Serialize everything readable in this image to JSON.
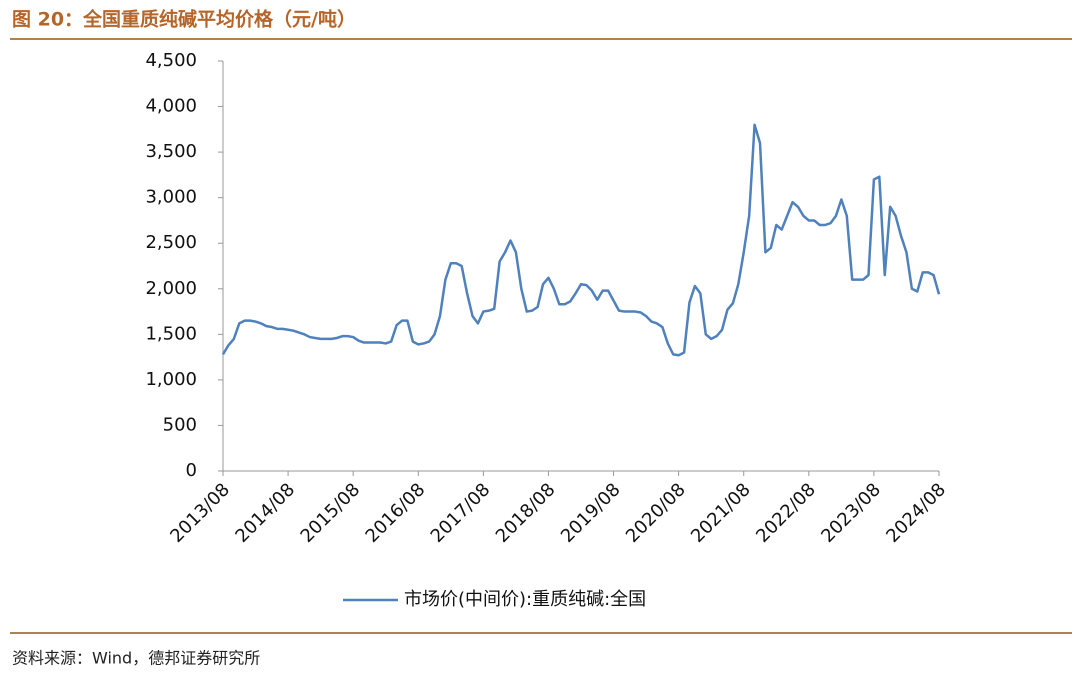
{
  "header": {
    "title": "图 20：全国重质纯碱平均价格（元/吨）"
  },
  "chart_data": {
    "type": "line",
    "x": [
      "2013/08",
      "2013/09",
      "2013/10",
      "2013/11",
      "2013/12",
      "2014/01",
      "2014/02",
      "2014/03",
      "2014/04",
      "2014/05",
      "2014/06",
      "2014/07",
      "2014/08",
      "2014/09",
      "2014/10",
      "2014/11",
      "2014/12",
      "2015/01",
      "2015/02",
      "2015/03",
      "2015/04",
      "2015/05",
      "2015/06",
      "2015/07",
      "2015/08",
      "2015/09",
      "2015/10",
      "2015/11",
      "2015/12",
      "2016/01",
      "2016/02",
      "2016/03",
      "2016/04",
      "2016/05",
      "2016/06",
      "2016/07",
      "2016/08",
      "2016/09",
      "2016/10",
      "2016/11",
      "2016/12",
      "2017/01",
      "2017/02",
      "2017/03",
      "2017/04",
      "2017/05",
      "2017/06",
      "2017/07",
      "2017/08",
      "2017/09",
      "2017/10",
      "2017/11",
      "2017/12",
      "2018/01",
      "2018/02",
      "2018/03",
      "2018/04",
      "2018/05",
      "2018/06",
      "2018/07",
      "2018/08",
      "2018/09",
      "2018/10",
      "2018/11",
      "2018/12",
      "2019/01",
      "2019/02",
      "2019/03",
      "2019/04",
      "2019/05",
      "2019/06",
      "2019/07",
      "2019/08",
      "2019/09",
      "2019/10",
      "2019/11",
      "2019/12",
      "2020/01",
      "2020/02",
      "2020/03",
      "2020/04",
      "2020/05",
      "2020/06",
      "2020/07",
      "2020/08",
      "2020/09",
      "2020/10",
      "2020/11",
      "2020/12",
      "2021/01",
      "2021/02",
      "2021/03",
      "2021/04",
      "2021/05",
      "2021/06",
      "2021/07",
      "2021/08",
      "2021/09",
      "2021/10",
      "2021/11",
      "2021/12",
      "2022/01",
      "2022/02",
      "2022/03",
      "2022/04",
      "2022/05",
      "2022/06",
      "2022/07",
      "2022/08",
      "2022/09",
      "2022/10",
      "2022/11",
      "2022/12",
      "2023/01",
      "2023/02",
      "2023/03",
      "2023/04",
      "2023/05",
      "2023/06",
      "2023/07",
      "2023/08",
      "2023/09",
      "2023/10",
      "2023/11",
      "2023/12",
      "2024/01",
      "2024/02",
      "2024/03",
      "2024/04",
      "2024/05",
      "2024/06",
      "2024/07",
      "2024/08"
    ],
    "series": [
      {
        "name": "市场价(中间价):重质纯碱:全国",
        "color": "#4f81bd",
        "values": [
          1280,
          1380,
          1450,
          1620,
          1650,
          1650,
          1640,
          1620,
          1590,
          1580,
          1560,
          1560,
          1550,
          1540,
          1520,
          1500,
          1470,
          1460,
          1450,
          1450,
          1450,
          1460,
          1480,
          1480,
          1470,
          1430,
          1410,
          1410,
          1410,
          1410,
          1400,
          1420,
          1600,
          1650,
          1650,
          1420,
          1390,
          1400,
          1420,
          1500,
          1700,
          2100,
          2280,
          2280,
          2250,
          1950,
          1700,
          1620,
          1750,
          1760,
          1780,
          2300,
          2400,
          2530,
          2400,
          2000,
          1750,
          1760,
          1800,
          2050,
          2120,
          2000,
          1830,
          1830,
          1860,
          1950,
          2050,
          2040,
          1980,
          1880,
          1980,
          1980,
          1870,
          1760,
          1750,
          1750,
          1750,
          1740,
          1700,
          1640,
          1620,
          1580,
          1400,
          1280,
          1270,
          1300,
          1850,
          2030,
          1950,
          1500,
          1450,
          1480,
          1550,
          1770,
          1840,
          2050,
          2400,
          2800,
          3800,
          3600,
          2400,
          2450,
          2700,
          2650,
          2800,
          2950,
          2900,
          2800,
          2750,
          2750,
          2700,
          2700,
          2720,
          2800,
          2980,
          2800,
          2100,
          2100,
          2100,
          2150,
          3200,
          3230,
          2150,
          2900,
          2800,
          2580,
          2400,
          2000,
          1970,
          2180,
          2180,
          2150,
          1940
        ]
      }
    ],
    "xlim": [
      "2013/08",
      "2024/08"
    ],
    "xticks": [
      "2013/08",
      "2014/08",
      "2015/08",
      "2016/08",
      "2017/08",
      "2018/08",
      "2019/08",
      "2020/08",
      "2021/08",
      "2022/08",
      "2023/08",
      "2024/08"
    ],
    "ylim": [
      0,
      4500
    ],
    "yticks": [
      0,
      500,
      {
        "value": 1000,
        "label": "1,000"
      },
      {
        "value": 1500,
        "label": "1,500"
      },
      {
        "value": 2000,
        "label": "2,000"
      },
      {
        "value": 2500,
        "label": "2,500"
      },
      {
        "value": 3000,
        "label": "3,000"
      },
      {
        "value": 3500,
        "label": "3,500"
      },
      {
        "value": 4000,
        "label": "4,000"
      },
      {
        "value": 4500,
        "label": "4,500"
      }
    ],
    "grid": false,
    "legend": "bottom"
  },
  "footer": {
    "source": "资料来源：Wind，德邦证券研究所"
  }
}
